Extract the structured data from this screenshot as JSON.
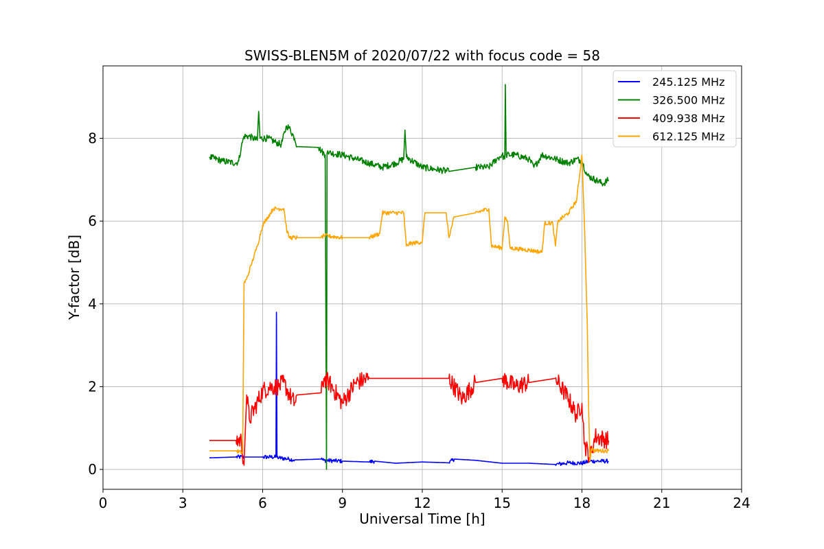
{
  "chart_data": {
    "type": "line",
    "title": "SWISS-BLEN5M of 2020/07/22 with focus code = 58",
    "xlabel": "Universal Time [h]",
    "ylabel": "Y-factor [dB]",
    "xlim": [
      0,
      24
    ],
    "ylim": [
      -0.48,
      9.75
    ],
    "xticks": [
      0,
      3,
      6,
      9,
      12,
      15,
      18,
      21,
      24
    ],
    "yticks": [
      0,
      2,
      4,
      6,
      8
    ],
    "grid": true,
    "legend_position": "top-right",
    "series": [
      {
        "name": "245.125 MHz",
        "color": "#0000ff",
        "noise": 0.05,
        "x": [
          4.0,
          5.0,
          5.3,
          6.0,
          6.5,
          6.52,
          6.54,
          6.6,
          7.0,
          7.2,
          8.2,
          8.3,
          9.0,
          10.0,
          10.2,
          11.0,
          12.0,
          13.0,
          13.2,
          14.0,
          15.0,
          16.0,
          17.0,
          17.5,
          18.0,
          18.3,
          18.5,
          19.0
        ],
        "y": [
          0.28,
          0.3,
          0.3,
          0.3,
          0.3,
          3.8,
          0.3,
          0.28,
          0.25,
          0.23,
          0.25,
          0.22,
          0.2,
          0.18,
          0.2,
          0.15,
          0.18,
          0.16,
          0.25,
          0.22,
          0.15,
          0.15,
          0.12,
          0.16,
          0.15,
          0.2,
          0.2,
          0.2
        ]
      },
      {
        "name": "326.500 MHz",
        "color": "#008000",
        "noise": 0.08,
        "x": [
          4.0,
          4.5,
          5.0,
          5.1,
          5.2,
          5.3,
          5.5,
          5.8,
          5.85,
          5.9,
          6.2,
          6.5,
          6.7,
          6.9,
          7.0,
          7.2,
          7.3,
          8.1,
          8.2,
          8.35,
          8.4,
          8.42,
          8.45,
          8.5,
          9.0,
          9.5,
          10.0,
          10.5,
          11.0,
          11.3,
          11.35,
          11.4,
          12.0,
          12.5,
          13.0,
          14.0,
          14.5,
          14.8,
          15.0,
          15.1,
          15.12,
          15.15,
          15.5,
          16.0,
          16.2,
          16.5,
          17.0,
          17.5,
          17.8,
          18.0,
          18.2,
          18.5,
          18.8,
          19.0
        ],
        "y": [
          7.55,
          7.45,
          7.4,
          7.45,
          7.8,
          8.05,
          8.05,
          7.95,
          8.65,
          8.0,
          8.0,
          7.9,
          7.85,
          8.3,
          8.25,
          8.0,
          7.8,
          7.78,
          7.7,
          7.6,
          0.0,
          7.65,
          7.7,
          7.65,
          7.6,
          7.5,
          7.4,
          7.3,
          7.4,
          7.5,
          8.2,
          7.55,
          7.3,
          7.25,
          7.2,
          7.3,
          7.3,
          7.5,
          7.6,
          7.5,
          9.3,
          7.6,
          7.6,
          7.5,
          7.3,
          7.6,
          7.5,
          7.4,
          7.5,
          7.45,
          7.1,
          7.0,
          6.9,
          7.0
        ]
      },
      {
        "name": "409.938 MHz",
        "color": "#ff0000",
        "noise": 0.22,
        "x": [
          4.0,
          5.0,
          5.2,
          5.3,
          5.4,
          5.5,
          6.0,
          6.3,
          6.6,
          6.8,
          7.0,
          7.2,
          7.3,
          8.2,
          8.3,
          8.5,
          9.0,
          9.5,
          10.0,
          11.0,
          12.0,
          13.0,
          13.5,
          14.0,
          15.0,
          15.5,
          16.0,
          17.0,
          17.3,
          17.5,
          17.8,
          18.0,
          18.1,
          18.3,
          18.5,
          19.0
        ],
        "y": [
          0.7,
          0.7,
          0.7,
          0.1,
          1.8,
          1.2,
          1.9,
          2.0,
          2.0,
          2.1,
          1.8,
          1.6,
          1.8,
          1.85,
          2.2,
          2.1,
          1.6,
          2.1,
          2.2,
          2.2,
          2.2,
          2.2,
          1.7,
          2.1,
          2.2,
          2.0,
          2.1,
          2.2,
          1.9,
          1.7,
          1.3,
          1.6,
          0.6,
          0.3,
          0.8,
          0.7
        ]
      },
      {
        "name": "612.125 MHz",
        "color": "#ffa500",
        "noise": 0.05,
        "x": [
          4.0,
          5.0,
          5.25,
          5.3,
          5.4,
          5.6,
          5.8,
          6.0,
          6.2,
          6.4,
          6.8,
          6.9,
          7.0,
          7.3,
          8.2,
          8.3,
          9.0,
          10.0,
          10.4,
          10.5,
          11.0,
          11.3,
          11.4,
          11.5,
          12.0,
          12.1,
          12.9,
          13.0,
          13.2,
          14.0,
          14.5,
          14.6,
          15.0,
          15.1,
          15.2,
          15.3,
          16.0,
          16.5,
          16.6,
          16.9,
          17.0,
          17.1,
          17.5,
          17.8,
          18.0,
          18.1,
          18.2,
          18.25,
          18.3,
          18.35,
          18.5,
          19.0
        ],
        "y": [
          0.45,
          0.45,
          0.4,
          4.5,
          4.6,
          5.0,
          5.4,
          5.9,
          6.1,
          6.3,
          6.3,
          5.8,
          5.6,
          5.6,
          5.6,
          5.65,
          5.6,
          5.6,
          5.7,
          6.2,
          6.2,
          6.2,
          5.4,
          5.45,
          5.5,
          6.2,
          6.2,
          5.6,
          6.1,
          6.2,
          6.3,
          5.4,
          5.35,
          6.1,
          6.0,
          5.35,
          5.3,
          5.25,
          5.95,
          5.95,
          5.4,
          6.0,
          6.2,
          6.5,
          7.6,
          5.8,
          3.5,
          1.5,
          0.2,
          0.5,
          0.45,
          0.45
        ]
      }
    ]
  }
}
